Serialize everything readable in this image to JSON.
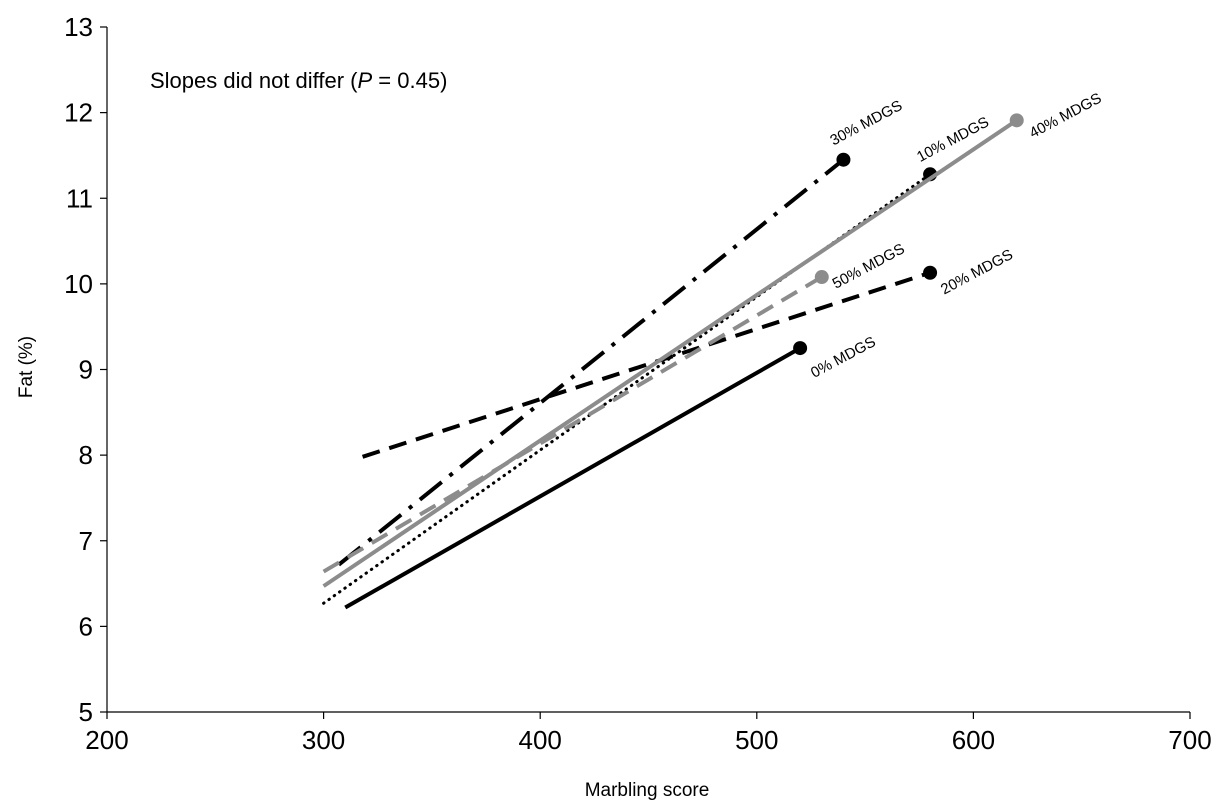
{
  "chart_data": {
    "type": "line",
    "title": "",
    "annotation": {
      "prefix": "Slopes did not differ (",
      "italic": "P",
      "suffix": " = 0.45)"
    },
    "xlabel": "Marbling score",
    "ylabel": "Fat (%)",
    "xlim": [
      200,
      700
    ],
    "ylim": [
      5,
      13
    ],
    "xticks": [
      200,
      300,
      400,
      500,
      600,
      700
    ],
    "yticks": [
      5,
      6,
      7,
      8,
      9,
      10,
      11,
      12,
      13
    ],
    "grid": false,
    "series": [
      {
        "name": "0% MDGS",
        "x": [
          310,
          520
        ],
        "y": [
          6.22,
          9.25
        ],
        "color": "#000000",
        "dash": "solid",
        "marker_color": "#000000"
      },
      {
        "name": "10% MDGS",
        "x": [
          300,
          580
        ],
        "y": [
          6.27,
          11.28
        ],
        "color": "#000000",
        "dash": "dotted",
        "marker_color": "#000000"
      },
      {
        "name": "20% MDGS",
        "x": [
          318,
          580
        ],
        "y": [
          7.98,
          10.13
        ],
        "color": "#000000",
        "dash": "dashed",
        "marker_color": "#000000"
      },
      {
        "name": "30% MDGS",
        "x": [
          307,
          540
        ],
        "y": [
          6.72,
          11.45
        ],
        "color": "#000000",
        "dash": "dashdot",
        "marker_color": "#000000"
      },
      {
        "name": "40% MDGS",
        "x": [
          300,
          620
        ],
        "y": [
          6.47,
          11.91
        ],
        "color": "#8c8c8c",
        "dash": "solid",
        "marker_color": "#8c8c8c"
      },
      {
        "name": "50% MDGS",
        "x": [
          300,
          530
        ],
        "y": [
          6.64,
          10.08
        ],
        "color": "#8c8c8c",
        "dash": "dashed",
        "marker_color": "#8c8c8c"
      }
    ]
  }
}
